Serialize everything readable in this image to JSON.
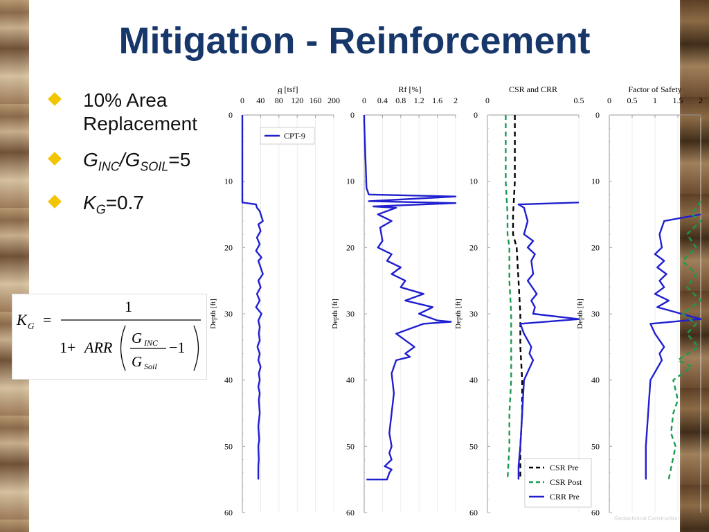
{
  "slide": {
    "title": "Mitigation - Reinforcement",
    "bullets": [
      {
        "parts": [
          {
            "t": "10% Area Replacement",
            "i": false
          }
        ]
      },
      {
        "parts": [
          {
            "t": "G",
            "i": true
          },
          {
            "t": "INC",
            "i": true,
            "sub": true
          },
          {
            "t": "/",
            "i": true
          },
          {
            "t": "G",
            "i": true
          },
          {
            "t": "SOIL",
            "i": true,
            "sub": true
          },
          {
            "t": "=5",
            "i": false
          }
        ]
      },
      {
        "parts": [
          {
            "t": "K",
            "i": true
          },
          {
            "t": "G",
            "i": true,
            "sub": true
          },
          {
            "t": "=0.7",
            "i": false
          }
        ]
      }
    ],
    "formula": {
      "lhs": "K",
      "lhs_sub": "G",
      "eq": "=",
      "numerator": "1",
      "den_prefix": "1+ ",
      "den_arr": "ARR",
      "frac_num": "G",
      "frac_num_sub": "INC",
      "frac_den": "G",
      "frac_den_sub": "Soil",
      "minus_one": "−1"
    },
    "footer": "Geotechnical Construction"
  },
  "chart_data": [
    {
      "type": "line",
      "title": "q_t [tsf]",
      "xticks": [
        0,
        40,
        80,
        120,
        160,
        200
      ],
      "xlim": [
        0,
        200
      ],
      "ylabel": "Depth [ft]",
      "ylim": [
        0,
        60
      ],
      "yticks": [
        0,
        10,
        20,
        30,
        40,
        50,
        60
      ],
      "legend": [
        "CPT-9"
      ],
      "series": [
        {
          "name": "CPT-9",
          "color": "#1f1fd0",
          "style": "solid",
          "x": [
            0,
            0,
            0,
            0,
            30,
            32,
            38,
            45,
            35,
            40,
            32,
            38,
            30,
            42,
            35,
            40,
            45,
            35,
            40,
            32,
            38,
            30,
            42,
            35,
            38,
            36,
            38,
            33,
            38,
            35,
            40,
            36,
            38,
            35,
            38,
            36,
            38,
            35,
            37,
            35,
            36,
            35,
            35
          ],
          "y": [
            0,
            0.5,
            12,
            13.2,
            13.5,
            14,
            14.5,
            16,
            16.5,
            17.5,
            18.5,
            19.5,
            20.5,
            21.5,
            22,
            23,
            24,
            25,
            26,
            27,
            28,
            29,
            30,
            31,
            32,
            33,
            34,
            35,
            36,
            37,
            38,
            39,
            40,
            41,
            42,
            43,
            45,
            47,
            49,
            50,
            52,
            53,
            55
          ]
        }
      ]
    },
    {
      "type": "line",
      "title": "Rf [%]",
      "xticks": [
        0,
        0.4,
        0.8,
        1.2,
        1.6,
        2
      ],
      "xlim": [
        0,
        2
      ],
      "ylabel": "Depth [ft]",
      "ylim": [
        0,
        60
      ],
      "yticks": [
        0,
        10,
        20,
        30,
        40,
        50,
        60
      ],
      "series": [
        {
          "name": "",
          "color": "#1f1fd0",
          "style": "solid",
          "x": [
            0,
            0,
            0.05,
            0.1,
            2.0,
            0.1,
            2.0,
            0.2,
            0.7,
            0.3,
            0.6,
            0.35,
            0.4,
            0.3,
            0.6,
            0.5,
            0.8,
            0.6,
            0.9,
            0.8,
            1.3,
            0.9,
            1.5,
            1.2,
            1.6,
            1.9,
            1.3,
            0.7,
            1.1,
            0.9,
            1.0,
            0.7,
            0.6,
            0.65,
            0.6,
            0.55,
            0.6,
            0.55,
            0.6,
            0.45,
            0.6,
            0.55,
            0.5,
            0.05
          ],
          "y": [
            0,
            1,
            11,
            12,
            12.3,
            13,
            13.3,
            13.8,
            14,
            15,
            16,
            17,
            19,
            20,
            21,
            22,
            23,
            24,
            25,
            26,
            27,
            28,
            29,
            30,
            31,
            31.2,
            31.5,
            33,
            35,
            36,
            36.5,
            37,
            39,
            42,
            45,
            48,
            50,
            51,
            52,
            53,
            53.5,
            54,
            55,
            55
          ]
        }
      ]
    },
    {
      "type": "line",
      "title": "CSR and CRR",
      "xticks": [
        0,
        0.5
      ],
      "xlim": [
        0,
        0.5
      ],
      "ylabel": "Depth [ft]",
      "ylim": [
        0,
        60
      ],
      "yticks": [
        0,
        10,
        20,
        30,
        40,
        50,
        60
      ],
      "legend": [
        "CSR Pre",
        "CSR Post",
        "CRR Pre"
      ],
      "series": [
        {
          "name": "CSR Pre",
          "color": "#000000",
          "style": "dashed",
          "x": [
            0.15,
            0.15,
            0.15,
            0.14,
            0.14,
            0.16,
            0.17,
            0.18,
            0.18,
            0.19,
            0.19,
            0.18,
            0.18
          ],
          "y": [
            0,
            5,
            10,
            15,
            18,
            20,
            25,
            30,
            35,
            40,
            45,
            50,
            55
          ]
        },
        {
          "name": "CSR Post",
          "color": "#1a9a50",
          "style": "dashed",
          "x": [
            0.1,
            0.1,
            0.1,
            0.11,
            0.11,
            0.12,
            0.12,
            0.13,
            0.13,
            0.13,
            0.12,
            0.12,
            0.11
          ],
          "y": [
            0,
            5,
            10,
            15,
            18,
            20,
            25,
            30,
            35,
            40,
            45,
            50,
            55
          ]
        },
        {
          "name": "CRR Pre",
          "color": "#1f1fd0",
          "style": "solid",
          "x": [
            0.5,
            0.17,
            0.2,
            0.22,
            0.2,
            0.25,
            0.22,
            0.26,
            0.24,
            0.25,
            0.22,
            0.27,
            0.24,
            0.26,
            0.25,
            0.5,
            0.18,
            0.2,
            0.24,
            0.23,
            0.25,
            0.2,
            0.19,
            0.18,
            0.17,
            0.17
          ],
          "y": [
            13.2,
            13.5,
            14,
            16,
            18,
            19,
            20,
            21,
            22,
            24,
            25,
            27,
            28,
            29,
            30,
            30.8,
            31.5,
            33,
            35,
            36,
            37,
            40,
            45,
            50,
            53,
            55
          ]
        }
      ]
    },
    {
      "type": "line",
      "title": "Factor of Safety",
      "xticks": [
        0,
        0.5,
        1,
        1.5,
        2
      ],
      "xlim": [
        0,
        2
      ],
      "ylabel": "Depth [ft]",
      "ylim": [
        0,
        60
      ],
      "yticks": [
        0,
        10,
        20,
        30,
        40,
        50,
        60
      ],
      "series": [
        {
          "name": "",
          "color": "#1f1fd0",
          "style": "solid",
          "x": [
            2.0,
            1.2,
            1.1,
            1.15,
            1.0,
            1.2,
            1.05,
            1.25,
            1.1,
            1.2,
            1.0,
            1.3,
            1.05,
            2.0,
            0.9,
            1.0,
            1.2,
            1.1,
            1.15,
            0.9,
            0.85,
            0.8,
            0.8
          ],
          "y": [
            15,
            16,
            18,
            20,
            21,
            22,
            23,
            24,
            25,
            26,
            27,
            28,
            29,
            30.8,
            31.5,
            33,
            35,
            36,
            37,
            40,
            45,
            50,
            55
          ]
        },
        {
          "name": "",
          "color": "#1a9a50",
          "style": "dashed",
          "x": [
            2.0,
            1.8,
            2.0,
            1.7,
            1.9,
            1.6,
            1.9,
            1.7,
            2.0,
            1.6,
            1.9,
            1.7,
            1.95,
            1.5,
            1.8,
            1.4,
            1.5,
            1.4,
            1.35,
            1.45,
            1.3
          ],
          "y": [
            13,
            15,
            16,
            18,
            20,
            22,
            24,
            26,
            28,
            30,
            31.5,
            33,
            35,
            37,
            38,
            40,
            43,
            45,
            48,
            50,
            55
          ]
        }
      ]
    }
  ]
}
